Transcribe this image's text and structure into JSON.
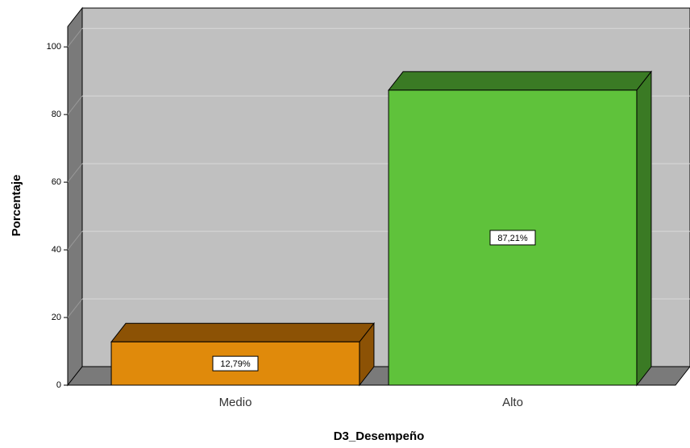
{
  "chart_data": {
    "type": "bar3d",
    "x_label": "D3_Desempeño",
    "y_label": "Porcentaje",
    "categories": [
      "Medio",
      "Alto"
    ],
    "values": [
      12.79,
      87.21
    ],
    "value_labels": [
      "12,79%",
      "87,21%"
    ],
    "colors": [
      "#e08a0b",
      "#5fc23b"
    ],
    "side_colors": [
      "#8c5205",
      "#3a7a24"
    ],
    "ylim": [
      0,
      106
    ],
    "yticks": [
      0,
      20,
      40,
      60,
      80,
      100
    ],
    "grid": true
  }
}
